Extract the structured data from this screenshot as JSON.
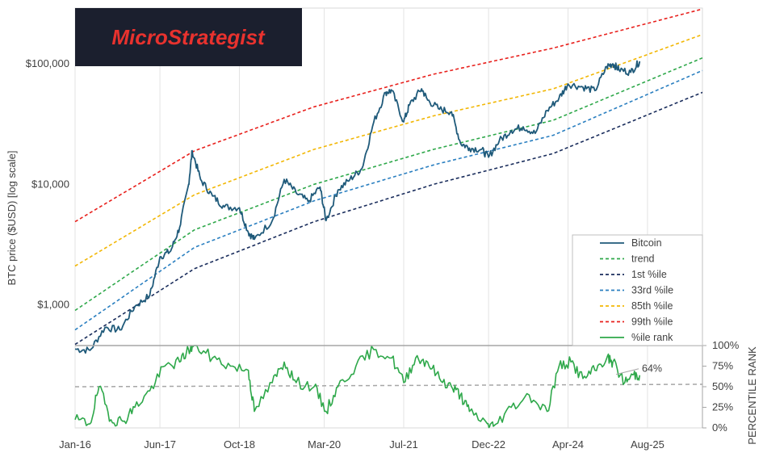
{
  "brand": {
    "name": "MicroStrategist",
    "bg_color": "#1b1f2e",
    "text_color": "#e8322e"
  },
  "chart_data": {
    "type": "line",
    "main_panel": {
      "ylabel": "BTC price ($USD) [log scale]",
      "yscale": "log",
      "ylim": [
        460,
        290000
      ],
      "yticks": [
        {
          "value": 1000,
          "label": "$1,000"
        },
        {
          "value": 10000,
          "label": "$10,000"
        },
        {
          "value": 100000,
          "label": "$100,000"
        }
      ],
      "grid": "vertical"
    },
    "rank_panel": {
      "ylabel": "PERCENTILE RANK",
      "ylim": [
        0,
        100
      ],
      "yticks": [
        {
          "value": 0,
          "label": "0%"
        },
        {
          "value": 25,
          "label": "25%"
        },
        {
          "value": 50,
          "label": "50%"
        },
        {
          "value": 75,
          "label": "75%"
        },
        {
          "value": 100,
          "label": "100%"
        }
      ],
      "reference_line": 50,
      "annotation": {
        "x": 2025.0,
        "y": 64,
        "label": "64%"
      }
    },
    "xlim": [
      2016.0,
      2026.5
    ],
    "xticks": [
      {
        "value": 2016.0,
        "label": "Jan-16"
      },
      {
        "value": 2017.42,
        "label": "Jun-17"
      },
      {
        "value": 2018.75,
        "label": "Oct-18"
      },
      {
        "value": 2020.17,
        "label": "Mar-20"
      },
      {
        "value": 2021.5,
        "label": "Jul-21"
      },
      {
        "value": 2022.92,
        "label": "Dec-22"
      },
      {
        "value": 2024.25,
        "label": "Apr-24"
      },
      {
        "value": 2025.58,
        "label": "Aug-25"
      }
    ],
    "legend": {
      "placement": "lower-right",
      "entries": [
        {
          "label": "Bitcoin",
          "color": "#1f5a7a",
          "style": "solid"
        },
        {
          "label": "trend",
          "color": "#2ea84a",
          "style": "dashed"
        },
        {
          "label": "1st %ile",
          "color": "#1a2d5c",
          "style": "dashed"
        },
        {
          "label": "33rd %ile",
          "color": "#2a7fc0",
          "style": "dashed"
        },
        {
          "label": "85th %ile",
          "color": "#f2b705",
          "style": "dashed"
        },
        {
          "label": "99th %ile",
          "color": "#e8201c",
          "style": "dashed"
        },
        {
          "label": "%ile rank",
          "color": "#2ea84a",
          "style": "solid"
        }
      ]
    },
    "bands": [
      {
        "name": "99th %ile",
        "color": "#e8201c",
        "x": [
          2016.0,
          2018.0,
          2020.0,
          2022.0,
          2024.0,
          2026.5
        ],
        "y": [
          4900,
          19000,
          44000,
          82000,
          135000,
          285000
        ]
      },
      {
        "name": "85th %ile",
        "color": "#f2b705",
        "x": [
          2016.0,
          2018.0,
          2020.0,
          2022.0,
          2024.0,
          2026.5
        ],
        "y": [
          2100,
          8200,
          19500,
          37000,
          62000,
          175000
        ]
      },
      {
        "name": "trend",
        "color": "#2ea84a",
        "x": [
          2016.0,
          2018.0,
          2020.0,
          2022.0,
          2024.0,
          2026.5
        ],
        "y": [
          900,
          4200,
          10000,
          19500,
          34000,
          112000
        ]
      },
      {
        "name": "33rd %ile",
        "color": "#2a7fc0",
        "x": [
          2016.0,
          2018.0,
          2020.0,
          2022.0,
          2024.0,
          2026.5
        ],
        "y": [
          620,
          3000,
          7300,
          14500,
          25500,
          88000
        ]
      },
      {
        "name": "1st %ile",
        "color": "#1a2d5c",
        "x": [
          2016.0,
          2018.0,
          2020.0,
          2022.0,
          2024.0,
          2026.5
        ],
        "y": [
          470,
          2000,
          4900,
          10000,
          18000,
          58000
        ]
      }
    ],
    "bitcoin": {
      "name": "Bitcoin",
      "x": [
        2016.0,
        2016.25,
        2016.5,
        2016.75,
        2017.0,
        2017.25,
        2017.42,
        2017.6,
        2017.75,
        2017.9,
        2017.96,
        2018.1,
        2018.3,
        2018.5,
        2018.75,
        2018.9,
        2019.0,
        2019.3,
        2019.5,
        2019.7,
        2019.9,
        2020.1,
        2020.2,
        2020.4,
        2020.6,
        2020.8,
        2021.0,
        2021.2,
        2021.3,
        2021.5,
        2021.6,
        2021.8,
        2021.9,
        2022.1,
        2022.3,
        2022.45,
        2022.6,
        2022.8,
        2022.92,
        2023.1,
        2023.3,
        2023.5,
        2023.7,
        2023.9,
        2024.1,
        2024.25,
        2024.5,
        2024.7,
        2024.9,
        2025.0,
        2025.1,
        2025.3,
        2025.45
      ],
      "y": [
        430,
        420,
        650,
        620,
        970,
        1200,
        2500,
        2800,
        4400,
        10000,
        19000,
        11000,
        8000,
        6500,
        6400,
        4000,
        3500,
        5000,
        11000,
        8500,
        7200,
        9500,
        5000,
        9000,
        11000,
        13500,
        33000,
        58000,
        60000,
        33000,
        46000,
        62000,
        50000,
        42000,
        40000,
        22000,
        20000,
        19500,
        16800,
        23000,
        28000,
        30000,
        26500,
        41000,
        52000,
        68000,
        64000,
        60000,
        95000,
        100000,
        90000,
        85000,
        105000
      ]
    },
    "percentile_rank": {
      "name": "%ile rank",
      "x": [
        2016.0,
        2016.25,
        2016.4,
        2016.6,
        2016.8,
        2017.0,
        2017.25,
        2017.5,
        2017.75,
        2017.9,
        2018.0,
        2018.3,
        2018.6,
        2018.9,
        2019.0,
        2019.3,
        2019.5,
        2019.7,
        2020.0,
        2020.2,
        2020.4,
        2020.7,
        2021.0,
        2021.3,
        2021.5,
        2021.7,
        2021.9,
        2022.1,
        2022.3,
        2022.45,
        2022.6,
        2022.9,
        2023.0,
        2023.3,
        2023.6,
        2023.9,
        2024.1,
        2024.3,
        2024.5,
        2024.7,
        2024.9,
        2025.0,
        2025.2,
        2025.35,
        2025.45
      ],
      "y": [
        10,
        5,
        50,
        10,
        8,
        25,
        45,
        75,
        80,
        95,
        100,
        85,
        75,
        70,
        20,
        55,
        80,
        55,
        50,
        20,
        50,
        75,
        95,
        85,
        55,
        85,
        80,
        60,
        50,
        40,
        20,
        5,
        2,
        25,
        40,
        20,
        75,
        80,
        60,
        70,
        85,
        80,
        55,
        65,
        64
      ]
    }
  }
}
